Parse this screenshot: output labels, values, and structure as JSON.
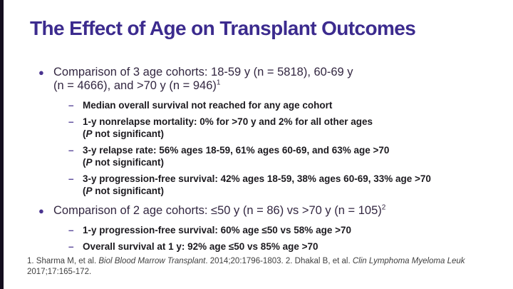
{
  "slide": {
    "title": "The Effect of Age on Transplant Outcomes",
    "colors": {
      "title_color": "#3c2b8e",
      "bullet_text_color": "#332741",
      "sub_text_color": "#1c1a1f",
      "dash_color": "#5b4a9b",
      "bullet_dot_color": "#4a3490",
      "footnote_color": "#3f3f3f",
      "left_bar_color": "#140e1e",
      "background_color": "#ffffff"
    },
    "bullet_glyph": "●",
    "dash_glyph": "–",
    "bullet1": {
      "line1": "Comparison of 3 age cohorts: 18-59 y (n = 5818), 60-69 y",
      "line2": "(n = 4666), and >70 y (n = 946)",
      "superscript": "1"
    },
    "bullet1_subs": [
      {
        "text": "Median overall survival not reached for any age cohort"
      },
      {
        "text": "1-y nonrelapse mortality: 0% for >70 y and 2% for all other ages",
        "note_open": "(",
        "note_p": "P",
        "note_rest": " not significant)"
      },
      {
        "text": "3-y relapse rate: 56% ages 18-59, 61% ages 60-69, and 63% age >70",
        "note_open": "(",
        "note_p": "P",
        "note_rest": " not significant)"
      },
      {
        "text": "3-y progression-free survival: 42% ages 18-59, 38% ages 60-69, 33% age >70",
        "note_open": "(",
        "note_p": "P",
        "note_rest": " not significant)"
      }
    ],
    "bullet2": {
      "line1": "Comparison of 2 age cohorts: ≤50 y (n = 86) vs >70 y (n = 105)",
      "superscript": "2"
    },
    "bullet2_subs": [
      {
        "text": "1-y progression-free survival: 60% age ≤50 vs 58% age >70"
      },
      {
        "text": "Overall survival at 1 y: 92% age ≤50 vs 85% age >70"
      }
    ],
    "footnote": {
      "seg1": "1. Sharma M, et al. ",
      "journal1": "Biol Blood Marrow Transplant",
      "seg2": ". 2014;20:1796-1803. 2. Dhakal B, et al. ",
      "journal2": "Clin Lymphoma Myeloma Leuk",
      "seg3": " 2017;17:165-172."
    }
  }
}
